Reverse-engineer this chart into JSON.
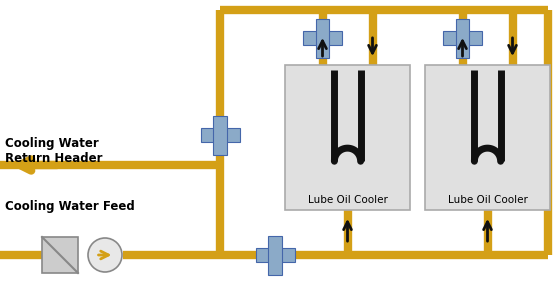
{
  "bg_color": "#ffffff",
  "pipe_color": "#D4A017",
  "pipe_lw": 6,
  "valve_color": "#8baac8",
  "cooler_box_color": "#e0e0e0",
  "cooler_box_edge": "#aaaaaa",
  "u_tube_color": "#111111",
  "u_tube_lw": 5,
  "text_color": "#000000",
  "label_return": "Cooling Water\nReturn Header",
  "label_feed": "Cooling Water Feed",
  "label_cooler": "Lube Oil Cooler",
  "figw": 5.58,
  "figh": 3.03,
  "dpi": 100
}
